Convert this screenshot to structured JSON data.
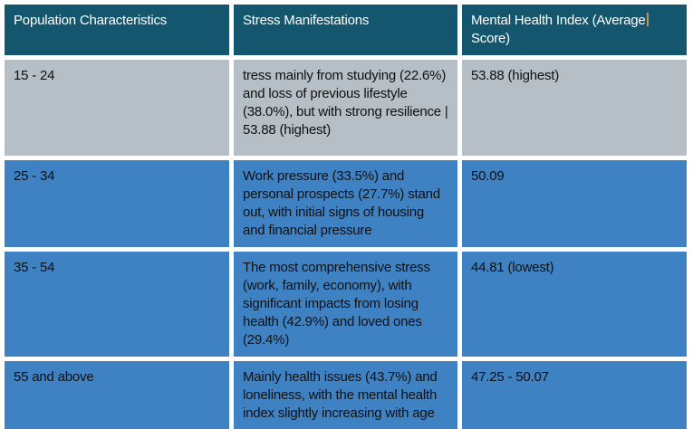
{
  "table": {
    "columns": [
      {
        "label": "Population Characteristics"
      },
      {
        "label": "Stress Manifestations"
      },
      {
        "label_line1": "Mental Health Index (Average",
        "label_line2": "Score)"
      }
    ],
    "rows": [
      {
        "population": "15 - 24",
        "stress": "tress mainly from studying (22.6%) and loss of previous lifestyle (38.0%), but with strong resilience | 53.88 (highest)",
        "index": "53.88 (highest)"
      },
      {
        "population": "25 - 34",
        "stress": "Work pressure (33.5%) and personal prospects (27.7%) stand out, with initial signs of housing and financial pressure",
        "index": "50.09"
      },
      {
        "population": "35 - 54",
        "stress": "The most comprehensive stress (work, family, economy), with significant impacts from losing health (42.9%) and loved ones (29.4%)",
        "index": "44.81 (lowest)"
      },
      {
        "population": "55 and above",
        "stress": "Mainly health issues (43.7%) and loneliness, with the mental health index slightly increasing with age",
        "index": "47.25 - 50.07"
      }
    ]
  },
  "colors": {
    "header_bg": "#15566F",
    "header_text": "#FFFFFF",
    "row_alt_bg": "#B5BFC5",
    "row_bg": "#3E82C4",
    "body_text": "#101010",
    "cursor": "#CE8E60"
  }
}
